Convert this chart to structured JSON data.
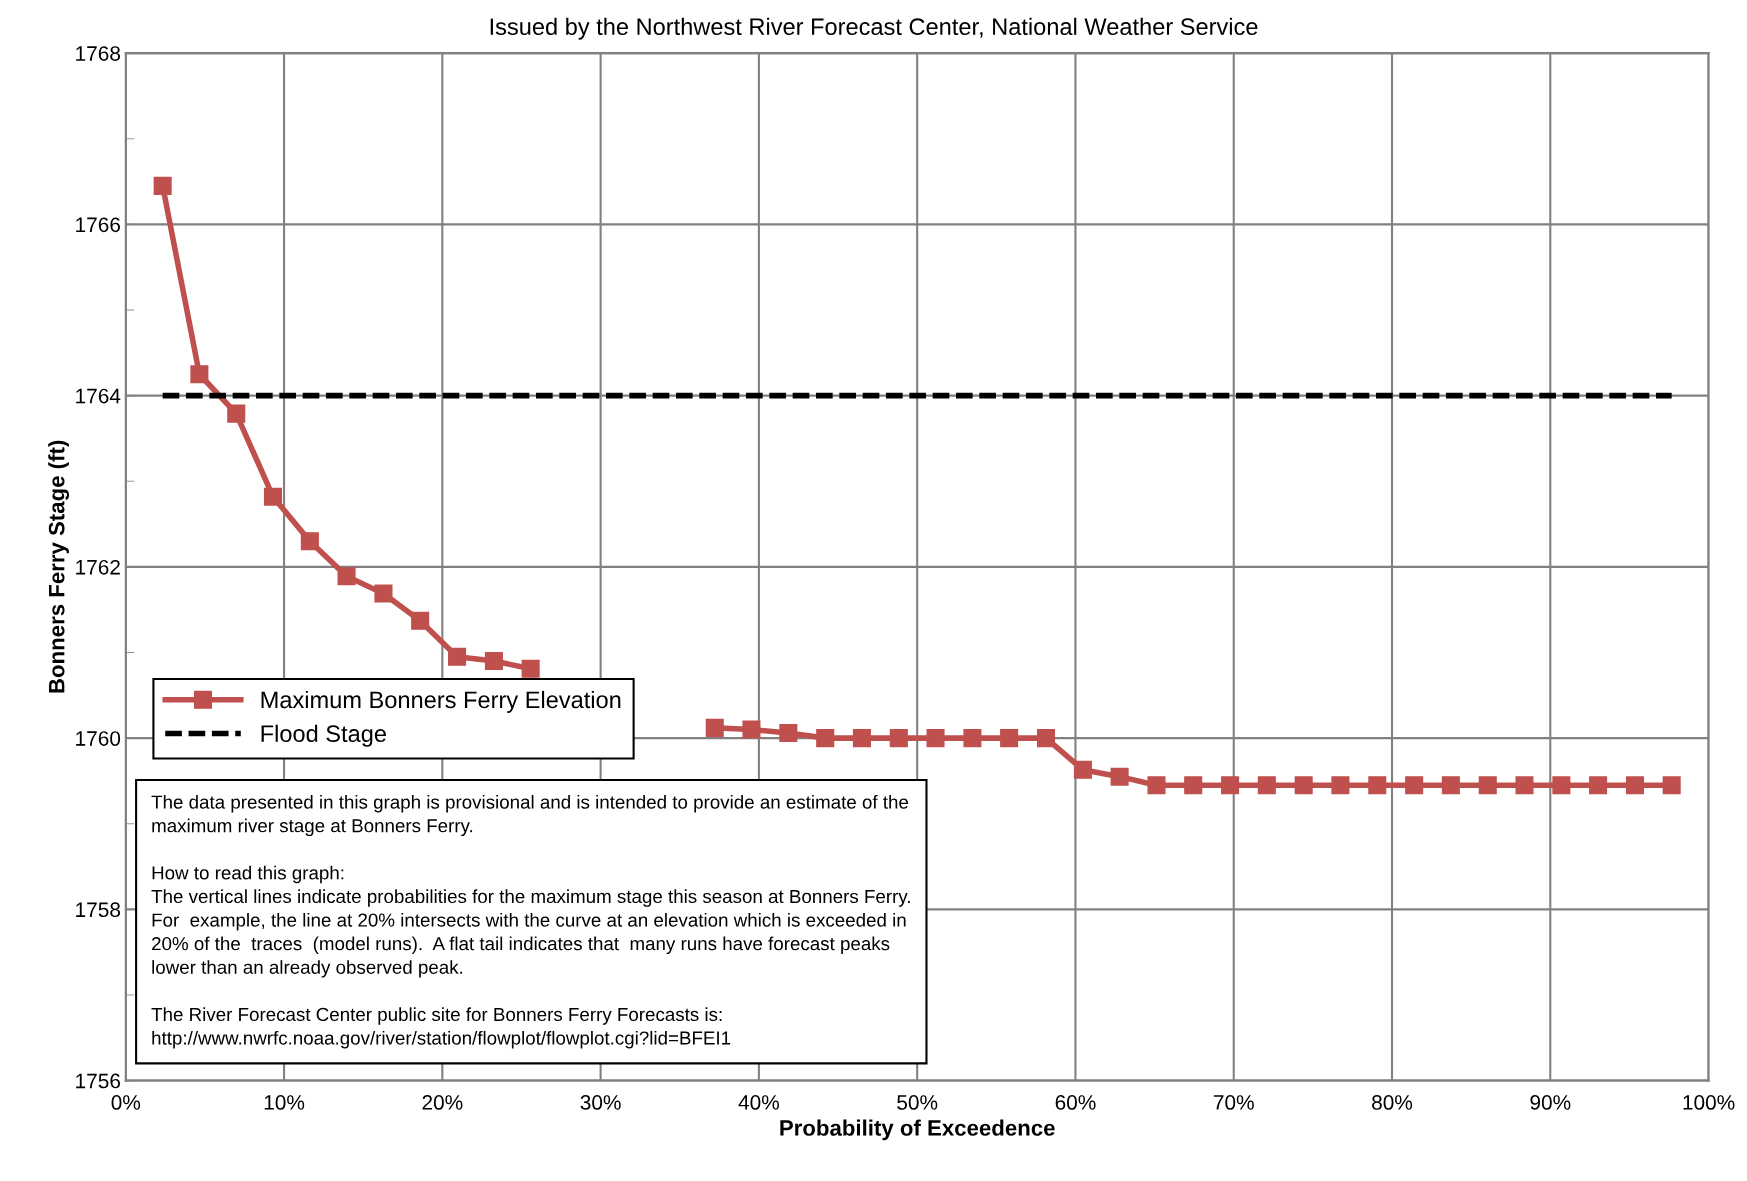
{
  "chart_data": {
    "type": "line",
    "title": "Issued by the Northwest River Forecast Center, National Weather Service",
    "xlabel": "Probability of Exceedence",
    "ylabel": "Bonners Ferry Stage (ft)",
    "x": [
      2.33,
      4.65,
      6.98,
      9.3,
      11.63,
      13.95,
      16.28,
      18.6,
      20.93,
      23.26,
      25.58,
      27.91,
      30.23,
      32.56,
      34.88,
      37.21,
      39.53,
      41.86,
      44.19,
      46.51,
      48.84,
      51.16,
      53.49,
      55.81,
      58.14,
      60.47,
      62.79,
      65.12,
      67.44,
      69.77,
      72.09,
      74.42,
      76.74,
      79.07,
      81.4,
      83.72,
      86.05,
      88.37,
      90.7,
      93.02,
      95.35,
      97.67
    ],
    "series": [
      {
        "name": "Maximum Bonners Ferry Elevation",
        "color": "#c0504d",
        "marker": "square",
        "line_style": "solid",
        "values": [
          1766.45,
          1764.25,
          1763.79,
          1762.82,
          1762.3,
          1761.89,
          1761.69,
          1761.37,
          1760.95,
          1760.9,
          1760.81,
          null,
          null,
          null,
          null,
          1760.12,
          1760.1,
          1760.06,
          1760.0,
          1760.0,
          1760.0,
          1760.0,
          1760.0,
          1760.0,
          1760.0,
          1759.63,
          1759.55,
          1759.45,
          1759.45,
          1759.45,
          1759.45,
          1759.45,
          1759.45,
          1759.45,
          1759.45,
          1759.45,
          1759.45,
          1759.45,
          1759.45,
          1759.45,
          1759.45,
          1759.45
        ]
      },
      {
        "name": "Flood Stage",
        "color": "#000000",
        "marker": "none",
        "line_style": "dashed",
        "x": [
          2.33,
          97.67
        ],
        "values": [
          1764,
          1764
        ]
      }
    ],
    "xlim": [
      0,
      100
    ],
    "xticks": [
      {
        "value": 0,
        "label": "0%"
      },
      {
        "value": 10,
        "label": "10%"
      },
      {
        "value": 20,
        "label": "20%"
      },
      {
        "value": 30,
        "label": "30%"
      },
      {
        "value": 40,
        "label": "40%"
      },
      {
        "value": 50,
        "label": "50%"
      },
      {
        "value": 60,
        "label": "60%"
      },
      {
        "value": 70,
        "label": "70%"
      },
      {
        "value": 80,
        "label": "80%"
      },
      {
        "value": 90,
        "label": "90%"
      },
      {
        "value": 100,
        "label": "100%"
      }
    ],
    "ylim": [
      1756,
      1768
    ],
    "yticks": [
      1756,
      {
        "value": 1757,
        "label": null
      },
      1758,
      {
        "value": 1759,
        "label": null
      },
      1760,
      {
        "value": 1761,
        "label": null
      },
      1762,
      {
        "value": 1763,
        "label": null
      },
      1764,
      {
        "value": 1765,
        "label": null
      },
      1766,
      {
        "value": 1767,
        "label": null
      },
      1768
    ],
    "grid": true,
    "legend": "left",
    "annotations": [
      "The data presented in this graph is provisional and is intended to provide an estimate of the\nmaximum river stage at Bonners Ferry.\n\nHow to read this graph:\nThe vertical lines indicate probabilities for the maximum stage this season at Bonners Ferry.\nFor  example, the line at 20% intersects with the curve at an elevation which is exceeded in\n20% of the  traces  (model runs).  A flat tail indicates that  many runs have forecast peaks\nlower than an already observed peak.\n\nThe River Forecast Center public site for Bonners Ferry Forecasts is:\nhttp://www.nwrfc.noaa.gov/river/station/flowplot/flowplot.cgi?lid=BFEI1"
    ]
  }
}
